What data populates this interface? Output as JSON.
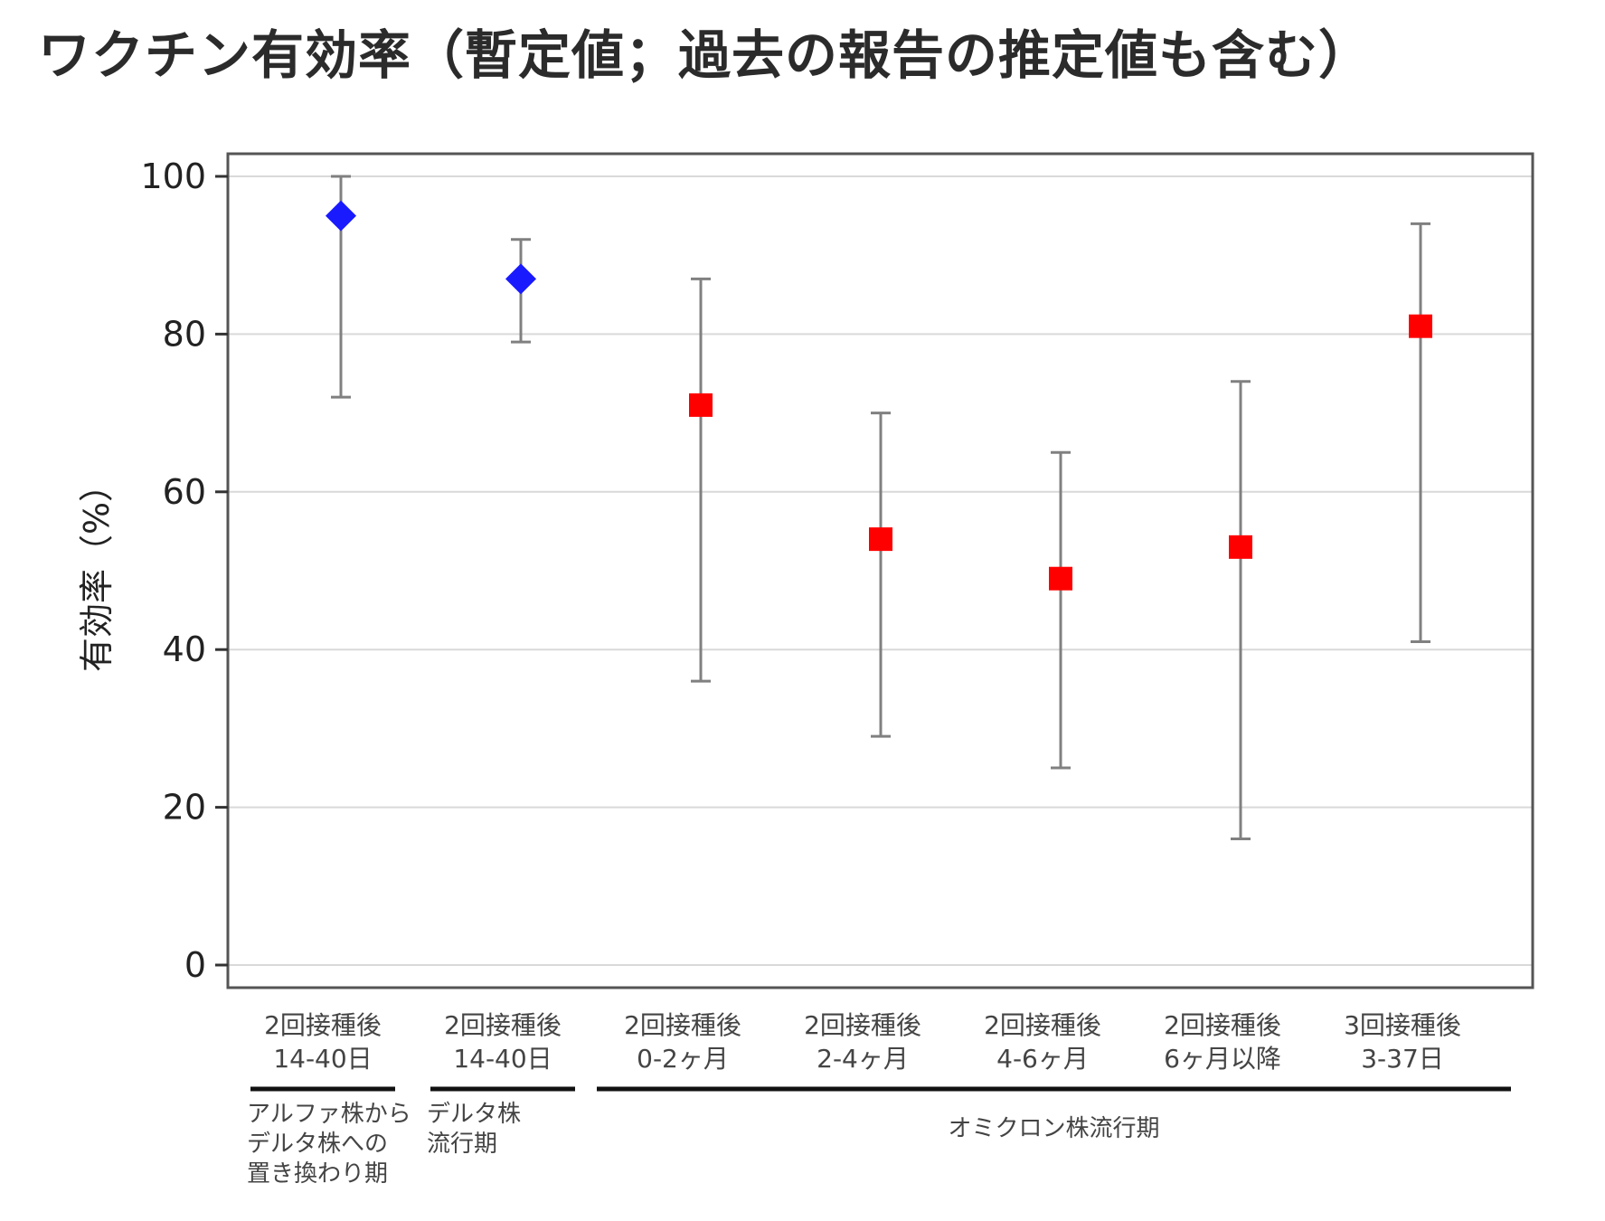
{
  "title": "ワクチン有効率（暫定値；過去の報告の推定値も含む）",
  "colors": {
    "period1": "#1a1aff",
    "period2": "#ff0000",
    "errorbar": "#808080",
    "grid": "#d9d9d9"
  },
  "chart_data": {
    "type": "scatter",
    "title": "",
    "xlabel": "",
    "ylabel": "有効率（%）",
    "ylim": [
      0,
      100
    ],
    "yticks": [
      0,
      20,
      40,
      60,
      80,
      100
    ],
    "grid": true,
    "categories": [
      [
        "2回接種後",
        "14-40日"
      ],
      [
        "2回接種後",
        "14-40日"
      ],
      [
        "2回接種後",
        "0-2ヶ月"
      ],
      [
        "2回接種後",
        "2-4ヶ月"
      ],
      [
        "2回接種後",
        "4-6ヶ月"
      ],
      [
        "2回接種後",
        "6ヶ月以降"
      ],
      [
        "3回接種後",
        "3-37日"
      ]
    ],
    "points": [
      {
        "value": 95,
        "lower": 72,
        "upper": 100,
        "marker": "diamond",
        "color": "#1a1aff"
      },
      {
        "value": 87,
        "lower": 79,
        "upper": 92,
        "marker": "diamond",
        "color": "#1a1aff"
      },
      {
        "value": 71,
        "lower": 36,
        "upper": 87,
        "marker": "square",
        "color": "#ff0000"
      },
      {
        "value": 54,
        "lower": 29,
        "upper": 70,
        "marker": "square",
        "color": "#ff0000"
      },
      {
        "value": 49,
        "lower": 25,
        "upper": 65,
        "marker": "square",
        "color": "#ff0000"
      },
      {
        "value": 53,
        "lower": 16,
        "upper": 74,
        "marker": "square",
        "color": "#ff0000"
      },
      {
        "value": 81,
        "lower": 41,
        "upper": 94,
        "marker": "square",
        "color": "#ff0000"
      }
    ],
    "periods": [
      {
        "label_lines": [
          "アルファ株から",
          "デルタ株への",
          "置き換わり期"
        ],
        "from": 0,
        "to": 0
      },
      {
        "label_lines": [
          "デルタ株",
          "流行期"
        ],
        "from": 1,
        "to": 1
      },
      {
        "label_lines": [
          "オミクロン株流行期"
        ],
        "from": 2,
        "to": 6
      }
    ]
  }
}
